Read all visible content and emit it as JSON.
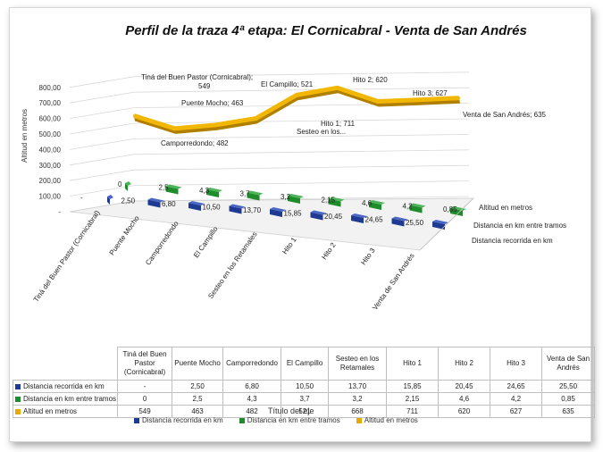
{
  "chart_data": {
    "type": "line",
    "title": "Perfil de la traza 4ª etapa: El Cornicabral - Venta de San Andrés",
    "ylabel": "Altitud en metros",
    "xlabel": "Título del eje",
    "ylim": [
      0,
      800
    ],
    "yticks": [
      "-",
      "100,00",
      "200,00",
      "300,00",
      "400,00",
      "500,00",
      "600,00",
      "700,00",
      "800,00"
    ],
    "categories": [
      "Tiná del Buen Pastor (Cornicabral)",
      "Puente Mocho",
      "Camporredondo",
      "El Campillo",
      "Sesteo en los Retamales",
      "Hito 1",
      "Hito 2",
      "Hito 3",
      "Venta de San Andrés"
    ],
    "series": [
      {
        "name": "Distancia recorrida en km",
        "color": "#1f3a93",
        "values": [
          0,
          2.5,
          6.8,
          10.5,
          13.7,
          15.85,
          20.45,
          24.65,
          25.5
        ],
        "labels": [
          "-",
          "2,50",
          "6,80",
          "10,50",
          "13,70",
          "15,85",
          "20,45",
          "24,65",
          "25,50"
        ]
      },
      {
        "name": "Distancia en km entre tramos",
        "color": "#1e8c2a",
        "values": [
          0,
          2.5,
          4.3,
          3.7,
          3.2,
          2.15,
          4.6,
          4.2,
          0.85
        ],
        "labels": [
          "0",
          "2,5",
          "4,3",
          "3,7",
          "3,2",
          "2,15",
          "4,6",
          "4,2",
          "0,85"
        ]
      },
      {
        "name": "Altitud en metros",
        "color": "#e8a900",
        "values": [
          549,
          463,
          482,
          521,
          668,
          711,
          620,
          627,
          635
        ],
        "labels": [
          "549",
          "463",
          "482",
          "521",
          "668",
          "711",
          "620",
          "627",
          "635"
        ]
      }
    ],
    "altitude_point_labels": [
      "Tiná del Buen Pastor (Cornicabral); 549",
      "Puente Mocho; 463",
      "Camporredondo; 482",
      "El Campillo; 521",
      "Sesteo en los...",
      "Hito 1; 711",
      "Hito 2; 620",
      "Hito 3; 627",
      "Venta de San Andrés; 635"
    ],
    "depth_axis_labels": [
      "Altitud en metros",
      "Distancia en km entre tramos",
      "Distancia recorrida en km"
    ],
    "table": {
      "headers": [
        "Tiná del Buen Pastor (Cornicabral)",
        "Puente Mocho",
        "Camporredondo",
        "El Campillo",
        "Sesteo en los Retamales",
        "Hito 1",
        "Hito 2",
        "Hito 3",
        "Venta de San Andrés"
      ]
    },
    "legend_position": "bottom"
  }
}
